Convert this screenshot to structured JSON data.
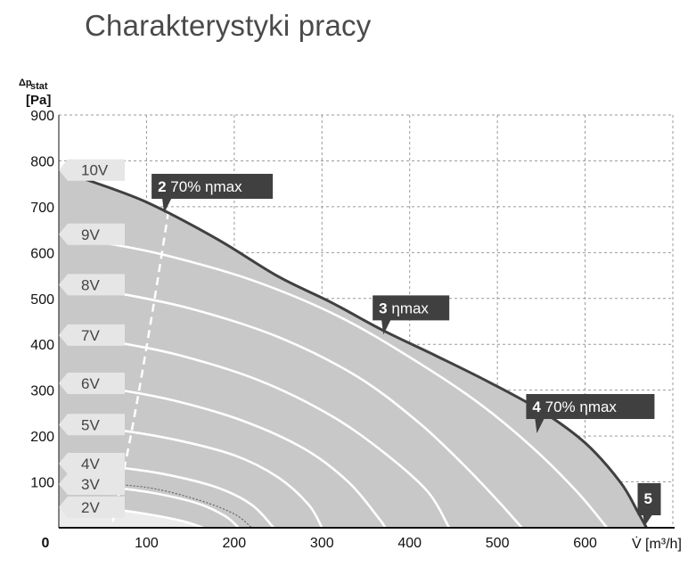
{
  "title": "Charakterystyki pracy",
  "chart_data": {
    "type": "line",
    "y_axis": {
      "label_top": "Δp",
      "label_sub": "stat",
      "unit": "[Pa]",
      "range": [
        0,
        900
      ],
      "ticks": [
        "0",
        "100",
        "200",
        "300",
        "400",
        "500",
        "600",
        "700",
        "800",
        "900"
      ]
    },
    "x_axis": {
      "label": "V̇",
      "unit": "[m³/h]",
      "range": [
        0,
        700
      ],
      "ticks": [
        "100",
        "200",
        "300",
        "400",
        "500",
        "600"
      ]
    },
    "grid": true,
    "colors": {
      "area": "#c8c8c8",
      "curve": "#ffffff",
      "envelope": "#404040",
      "label_box": "#404040",
      "voltage_tab": "#e6e6e6"
    },
    "envelope": [
      [
        30,
        760
      ],
      [
        100,
        710
      ],
      [
        180,
        630
      ],
      [
        250,
        548
      ],
      [
        310,
        492
      ],
      [
        370,
        430
      ],
      [
        430,
        375
      ],
      [
        490,
        318
      ],
      [
        550,
        255
      ],
      [
        600,
        185
      ],
      [
        640,
        100
      ],
      [
        660,
        35
      ],
      [
        670,
        0
      ]
    ],
    "dashed_line_70pct_min": [
      [
        125,
        690
      ],
      [
        105,
        450
      ],
      [
        82,
        200
      ],
      [
        60,
        0
      ]
    ],
    "series": [
      {
        "name": "10V",
        "points": [
          [
            0,
            780
          ],
          [
            30,
            760
          ]
        ]
      },
      {
        "name": "9V",
        "points": [
          [
            0,
            640
          ],
          [
            50,
            622
          ],
          [
            120,
            595
          ],
          [
            220,
            540
          ],
          [
            320,
            460
          ],
          [
            410,
            360
          ],
          [
            480,
            270
          ],
          [
            540,
            175
          ],
          [
            590,
            80
          ],
          [
            625,
            0
          ]
        ]
      },
      {
        "name": "8V",
        "points": [
          [
            0,
            530
          ],
          [
            60,
            514
          ],
          [
            150,
            478
          ],
          [
            250,
            416
          ],
          [
            340,
            330
          ],
          [
            410,
            230
          ],
          [
            460,
            140
          ],
          [
            500,
            60
          ],
          [
            528,
            0
          ]
        ]
      },
      {
        "name": "7V",
        "points": [
          [
            0,
            420
          ],
          [
            60,
            406
          ],
          [
            140,
            375
          ],
          [
            230,
            320
          ],
          [
            310,
            245
          ],
          [
            370,
            165
          ],
          [
            420,
            80
          ],
          [
            445,
            0
          ]
        ]
      },
      {
        "name": "6V",
        "points": [
          [
            0,
            315
          ],
          [
            60,
            303
          ],
          [
            130,
            278
          ],
          [
            210,
            233
          ],
          [
            280,
            172
          ],
          [
            330,
            100
          ],
          [
            365,
            20
          ],
          [
            372,
            0
          ]
        ]
      },
      {
        "name": "5V",
        "points": [
          [
            0,
            225
          ],
          [
            60,
            215
          ],
          [
            130,
            193
          ],
          [
            200,
            158
          ],
          [
            250,
            110
          ],
          [
            285,
            50
          ],
          [
            300,
            0
          ]
        ]
      },
      {
        "name": "4V",
        "points": [
          [
            0,
            140
          ],
          [
            60,
            133
          ],
          [
            120,
            117
          ],
          [
            180,
            88
          ],
          [
            220,
            50
          ],
          [
            245,
            0
          ]
        ]
      },
      {
        "name": "3V",
        "points": [
          [
            0,
            95
          ],
          [
            60,
            88
          ],
          [
            110,
            75
          ],
          [
            160,
            52
          ],
          [
            190,
            25
          ],
          [
            205,
            0
          ]
        ]
      },
      {
        "name": "2V",
        "points": [
          [
            0,
            45
          ],
          [
            60,
            40
          ],
          [
            100,
            30
          ],
          [
            140,
            15
          ],
          [
            165,
            0
          ]
        ]
      }
    ],
    "annotations": [
      {
        "number": "2",
        "text": "70% ηmax",
        "x": 120,
        "y": 690
      },
      {
        "number": "3",
        "text": "ηmax",
        "x": 370,
        "y": 425
      },
      {
        "number": "4",
        "text": "70% ηmax",
        "x": 545,
        "y": 210
      },
      {
        "number": "5",
        "text": "",
        "x": 668,
        "y": 0
      }
    ]
  }
}
